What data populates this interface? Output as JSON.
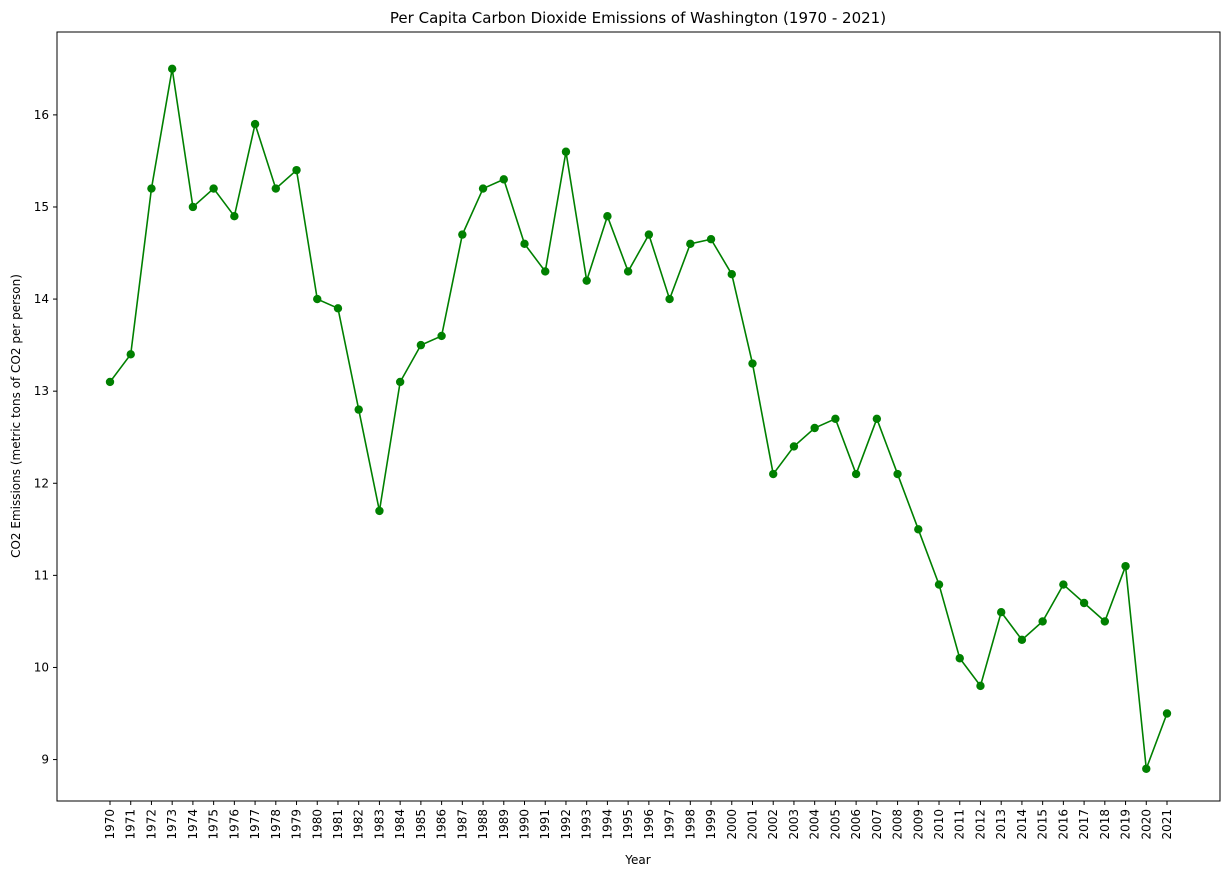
{
  "chart_data": {
    "type": "line",
    "title": "Per Capita Carbon Dioxide Emissions of Washington (1970 - 2021)",
    "xlabel": "Year",
    "ylabel": "CO2 Emissions (metric tons of CO2 per person)",
    "ylim": [
      8.55,
      16.9
    ],
    "yticks": [
      9,
      10,
      11,
      12,
      13,
      14,
      15,
      16
    ],
    "grid": false,
    "legend": "none",
    "color": "#008000",
    "marker": "circle",
    "x": [
      "1970",
      "1971",
      "1972",
      "1973",
      "1974",
      "1975",
      "1976",
      "1977",
      "1978",
      "1979",
      "1980",
      "1981",
      "1982",
      "1983",
      "1984",
      "1985",
      "1986",
      "1987",
      "1988",
      "1989",
      "1990",
      "1991",
      "1992",
      "1993",
      "1994",
      "1995",
      "1996",
      "1997",
      "1998",
      "1999",
      "2000",
      "2001",
      "2002",
      "2003",
      "2004",
      "2005",
      "2006",
      "2007",
      "2008",
      "2009",
      "2010",
      "2011",
      "2012",
      "2013",
      "2014",
      "2015",
      "2016",
      "2017",
      "2018",
      "2019",
      "2020",
      "2021"
    ],
    "values": [
      13.1,
      13.4,
      15.2,
      16.5,
      15.0,
      15.2,
      14.9,
      15.9,
      15.2,
      15.4,
      14.0,
      13.9,
      12.8,
      11.7,
      13.1,
      13.5,
      13.6,
      14.7,
      15.2,
      15.3,
      14.6,
      14.3,
      15.6,
      14.2,
      14.9,
      14.3,
      14.7,
      14.0,
      14.6,
      14.65,
      14.27,
      13.3,
      12.1,
      12.4,
      12.6,
      12.7,
      12.1,
      12.7,
      12.1,
      11.5,
      10.9,
      10.1,
      9.8,
      10.6,
      10.3,
      10.5,
      10.9,
      10.7,
      10.5,
      11.1,
      8.9,
      9.5
    ]
  }
}
